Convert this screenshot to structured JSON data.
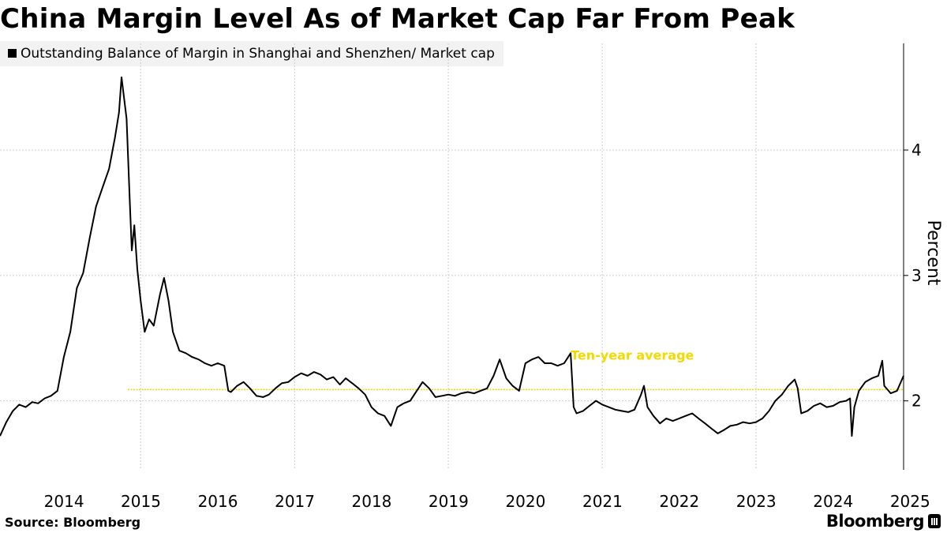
{
  "title": "China Margin Level As of Market Cap Far From Peak",
  "legend": {
    "label": "Outstanding Balance of Margin in Shanghai and Shenzhen/ Market cap"
  },
  "source": "Source: Bloomberg",
  "brand": "Bloomberg",
  "colors": {
    "series": "#000000",
    "average": "#f5d800",
    "grid": "#cccccc"
  },
  "chart_data": {
    "type": "line",
    "title": "China Margin Level As of Market Cap Far From Peak",
    "ylabel": "Percent",
    "xlabel": "",
    "x_tick_labels": [
      "2014",
      "2015",
      "2016",
      "2017",
      "2018",
      "2019",
      "2020",
      "2021",
      "2022",
      "2023",
      "2024",
      "2025"
    ],
    "xlim": [
      "2013-09-01",
      "2025-06-01"
    ],
    "ylim": [
      1.45,
      4.85
    ],
    "y_ticks": [
      2,
      3,
      4
    ],
    "y_axis_position": "right",
    "grid": true,
    "legend_position": "top-left",
    "series": [
      {
        "name": "Outstanding Balance of Margin in Shanghai and Shenzhen/ Market cap",
        "points": [
          [
            "2013-09-01",
            1.72
          ],
          [
            "2013-10-01",
            1.83
          ],
          [
            "2013-11-01",
            1.92
          ],
          [
            "2013-12-01",
            1.97
          ],
          [
            "2014-01-01",
            1.95
          ],
          [
            "2014-02-01",
            1.99
          ],
          [
            "2014-03-01",
            1.98
          ],
          [
            "2014-04-01",
            2.02
          ],
          [
            "2014-05-01",
            2.04
          ],
          [
            "2014-06-01",
            2.08
          ],
          [
            "2014-07-01",
            2.35
          ],
          [
            "2014-08-01",
            2.55
          ],
          [
            "2014-09-01",
            2.9
          ],
          [
            "2014-10-01",
            3.02
          ],
          [
            "2014-11-01",
            3.3
          ],
          [
            "2014-12-01",
            3.55
          ],
          [
            "2015-01-01",
            3.7
          ],
          [
            "2015-02-01",
            3.85
          ],
          [
            "2015-03-01",
            4.1
          ],
          [
            "2015-03-20",
            4.3
          ],
          [
            "2015-04-01",
            4.58
          ],
          [
            "2015-04-25",
            4.25
          ],
          [
            "2015-05-10",
            3.6
          ],
          [
            "2015-05-20",
            3.2
          ],
          [
            "2015-06-01",
            3.4
          ],
          [
            "2015-06-15",
            3.05
          ],
          [
            "2015-07-01",
            2.8
          ],
          [
            "2015-07-20",
            2.55
          ],
          [
            "2015-08-10",
            2.65
          ],
          [
            "2015-09-01",
            2.6
          ],
          [
            "2015-10-01",
            2.85
          ],
          [
            "2015-10-20",
            2.98
          ],
          [
            "2015-11-10",
            2.8
          ],
          [
            "2015-12-01",
            2.55
          ],
          [
            "2016-01-01",
            2.4
          ],
          [
            "2016-02-01",
            2.38
          ],
          [
            "2016-03-01",
            2.35
          ],
          [
            "2016-04-01",
            2.33
          ],
          [
            "2016-05-01",
            2.3
          ],
          [
            "2016-06-01",
            2.28
          ],
          [
            "2016-07-01",
            2.3
          ],
          [
            "2016-08-01",
            2.28
          ],
          [
            "2016-08-20",
            2.08
          ],
          [
            "2016-09-01",
            2.07
          ],
          [
            "2016-10-01",
            2.12
          ],
          [
            "2016-11-01",
            2.15
          ],
          [
            "2016-12-01",
            2.1
          ],
          [
            "2017-01-01",
            2.04
          ],
          [
            "2017-02-01",
            2.03
          ],
          [
            "2017-03-01",
            2.05
          ],
          [
            "2017-04-01",
            2.1
          ],
          [
            "2017-05-01",
            2.14
          ],
          [
            "2017-06-01",
            2.15
          ],
          [
            "2017-07-01",
            2.19
          ],
          [
            "2017-08-01",
            2.22
          ],
          [
            "2017-09-01",
            2.2
          ],
          [
            "2017-10-01",
            2.23
          ],
          [
            "2017-11-01",
            2.21
          ],
          [
            "2017-12-01",
            2.17
          ],
          [
            "2018-01-01",
            2.19
          ],
          [
            "2018-02-01",
            2.13
          ],
          [
            "2018-03-01",
            2.18
          ],
          [
            "2018-04-01",
            2.14
          ],
          [
            "2018-05-01",
            2.1
          ],
          [
            "2018-06-01",
            2.05
          ],
          [
            "2018-07-01",
            1.95
          ],
          [
            "2018-08-01",
            1.9
          ],
          [
            "2018-09-01",
            1.88
          ],
          [
            "2018-10-01",
            1.8
          ],
          [
            "2018-11-01",
            1.95
          ],
          [
            "2018-12-01",
            1.98
          ],
          [
            "2019-01-01",
            2.0
          ],
          [
            "2019-02-01",
            2.08
          ],
          [
            "2019-03-01",
            2.15
          ],
          [
            "2019-04-01",
            2.1
          ],
          [
            "2019-05-01",
            2.03
          ],
          [
            "2019-06-01",
            2.04
          ],
          [
            "2019-07-01",
            2.05
          ],
          [
            "2019-08-01",
            2.04
          ],
          [
            "2019-09-01",
            2.06
          ],
          [
            "2019-10-01",
            2.07
          ],
          [
            "2019-11-01",
            2.06
          ],
          [
            "2019-12-01",
            2.08
          ],
          [
            "2020-01-01",
            2.1
          ],
          [
            "2020-02-01",
            2.2
          ],
          [
            "2020-03-01",
            2.33
          ],
          [
            "2020-04-01",
            2.18
          ],
          [
            "2020-05-01",
            2.12
          ],
          [
            "2020-06-01",
            2.08
          ],
          [
            "2020-07-01",
            2.3
          ],
          [
            "2020-08-01",
            2.33
          ],
          [
            "2020-09-01",
            2.35
          ],
          [
            "2020-10-01",
            2.3
          ],
          [
            "2020-11-01",
            2.3
          ],
          [
            "2020-12-01",
            2.28
          ],
          [
            "2021-01-01",
            2.3
          ],
          [
            "2021-02-01",
            2.38
          ],
          [
            "2021-02-15",
            1.95
          ],
          [
            "2021-03-01",
            1.9
          ],
          [
            "2021-04-01",
            1.92
          ],
          [
            "2021-05-01",
            1.96
          ],
          [
            "2021-06-01",
            2.0
          ],
          [
            "2021-07-01",
            1.97
          ],
          [
            "2021-08-01",
            1.95
          ],
          [
            "2021-09-01",
            1.93
          ],
          [
            "2021-10-01",
            1.92
          ],
          [
            "2021-11-01",
            1.91
          ],
          [
            "2021-12-01",
            1.93
          ],
          [
            "2022-01-01",
            2.05
          ],
          [
            "2022-01-15",
            2.12
          ],
          [
            "2022-02-01",
            1.95
          ],
          [
            "2022-03-01",
            1.88
          ],
          [
            "2022-04-01",
            1.82
          ],
          [
            "2022-05-01",
            1.86
          ],
          [
            "2022-06-01",
            1.84
          ],
          [
            "2022-07-01",
            1.86
          ],
          [
            "2022-08-01",
            1.88
          ],
          [
            "2022-09-01",
            1.9
          ],
          [
            "2022-10-01",
            1.86
          ],
          [
            "2022-11-01",
            1.82
          ],
          [
            "2022-12-01",
            1.78
          ],
          [
            "2023-01-01",
            1.74
          ],
          [
            "2023-02-01",
            1.77
          ],
          [
            "2023-03-01",
            1.8
          ],
          [
            "2023-04-01",
            1.81
          ],
          [
            "2023-05-01",
            1.83
          ],
          [
            "2023-06-01",
            1.82
          ],
          [
            "2023-07-01",
            1.83
          ],
          [
            "2023-08-01",
            1.86
          ],
          [
            "2023-09-01",
            1.92
          ],
          [
            "2023-10-01",
            2.0
          ],
          [
            "2023-11-01",
            2.05
          ],
          [
            "2023-12-01",
            2.12
          ],
          [
            "2024-01-01",
            2.17
          ],
          [
            "2024-01-15",
            2.1
          ],
          [
            "2024-02-01",
            1.9
          ],
          [
            "2024-03-01",
            1.92
          ],
          [
            "2024-04-01",
            1.96
          ],
          [
            "2024-05-01",
            1.98
          ],
          [
            "2024-06-01",
            1.95
          ],
          [
            "2024-07-01",
            1.96
          ],
          [
            "2024-08-01",
            1.99
          ],
          [
            "2024-09-01",
            2.0
          ],
          [
            "2024-09-20",
            2.02
          ],
          [
            "2024-09-28",
            1.72
          ],
          [
            "2024-10-10",
            1.95
          ],
          [
            "2024-11-01",
            2.08
          ],
          [
            "2024-12-01",
            2.15
          ],
          [
            "2025-01-01",
            2.18
          ],
          [
            "2025-02-01",
            2.2
          ],
          [
            "2025-02-20",
            2.32
          ],
          [
            "2025-03-01",
            2.12
          ],
          [
            "2025-04-01",
            2.06
          ],
          [
            "2025-05-01",
            2.08
          ],
          [
            "2025-06-01",
            2.2
          ]
        ]
      }
    ],
    "reference_line": {
      "y": 2.09,
      "x_start": "2015-05-01",
      "x_end": "2025-06-01",
      "annotation": "Ten-year average"
    }
  }
}
